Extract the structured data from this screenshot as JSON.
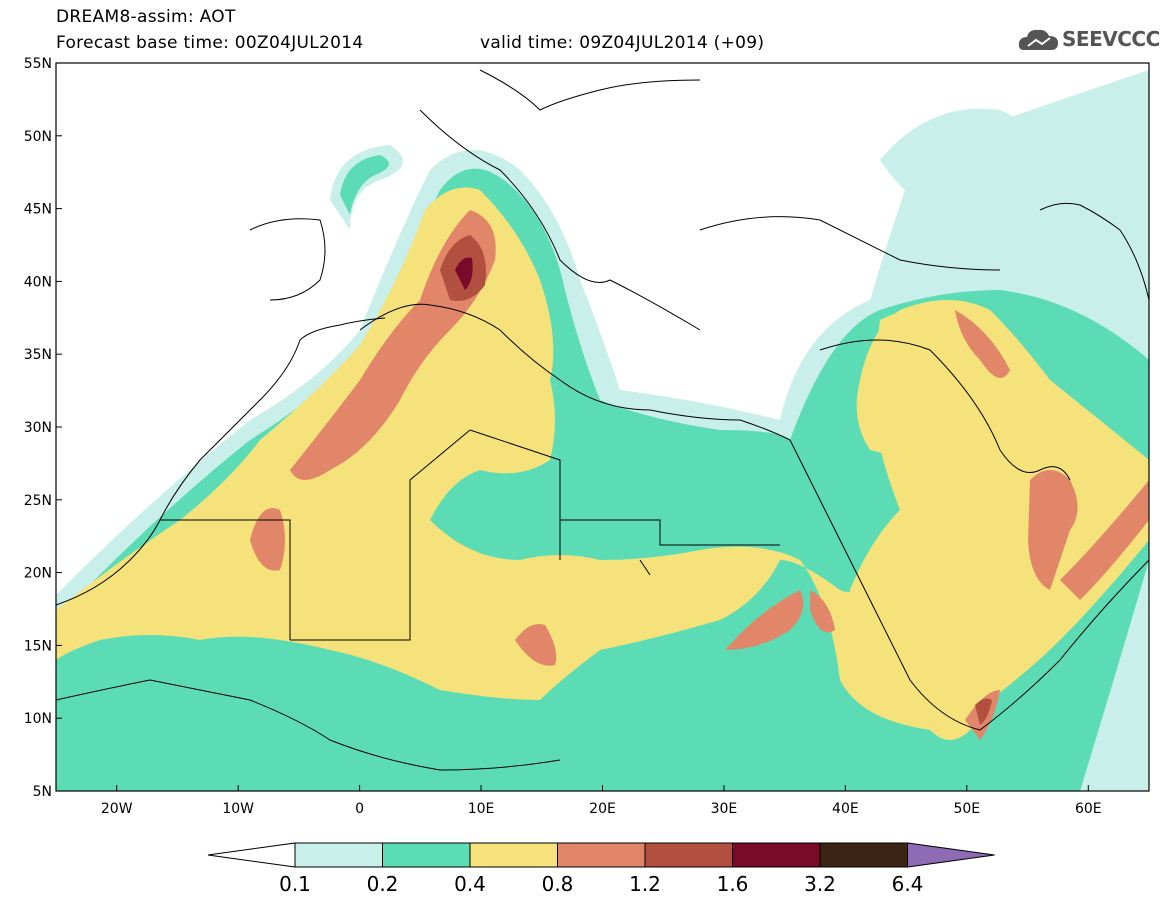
{
  "header": {
    "product": "DREAM8-assim: AOT",
    "base_time": "Forecast base time: 00Z04JUL2014",
    "valid_time": "valid time: 09Z04JUL2014 (+09)"
  },
  "logo": {
    "text": "SEEVCCC",
    "icon": "cloud-icon"
  },
  "map": {
    "lon_range": [
      -25,
      65
    ],
    "lat_range": [
      5,
      55
    ],
    "lat_labels": [
      "55N",
      "50N",
      "45N",
      "40N",
      "35N",
      "30N",
      "25N",
      "20N",
      "15N",
      "10N",
      "5N"
    ],
    "lon_labels": [
      "20W",
      "10W",
      "0",
      "10E",
      "20E",
      "30E",
      "40E",
      "50E",
      "60E"
    ],
    "colors": {
      "0.1-0.2": "#c8efe9",
      "0.2-0.4": "#5cdcb4",
      "0.4-0.8": "#f5e27a",
      "0.8-1.2": "#e2866a",
      "1.2-1.6": "#b1503e",
      "1.6-3.2": "#7a0a2a",
      "3.2-6.4": "#3b2414",
      "over-6.4": "#8f6bb5"
    }
  },
  "colorbar": {
    "labels": [
      "0.1",
      "0.2",
      "0.4",
      "0.8",
      "1.2",
      "1.6",
      "3.2",
      "6.4"
    ],
    "colors": [
      "#c8efe9",
      "#5cdcb4",
      "#f5e27a",
      "#e2866a",
      "#b1503e",
      "#7a0a2a",
      "#3b2414"
    ],
    "under_color": "#ffffff",
    "over_color": "#8f6bb5"
  }
}
